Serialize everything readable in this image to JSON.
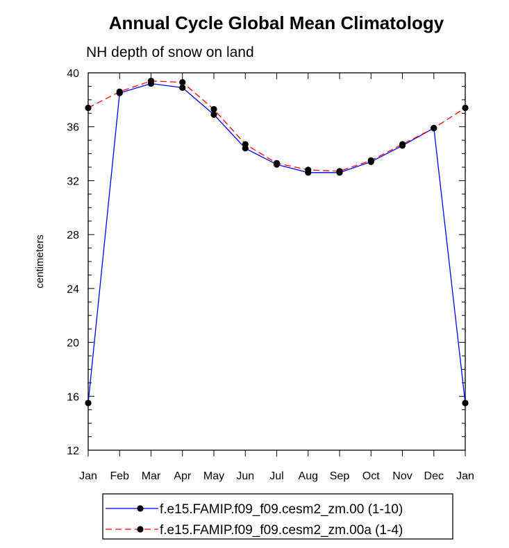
{
  "chart_data": {
    "type": "line",
    "title": "Annual Cycle Global Mean Climatology",
    "subtitle": "NH depth of snow on land",
    "xlabel": "",
    "ylabel": "centimeters",
    "categories": [
      "Jan",
      "Feb",
      "Mar",
      "Apr",
      "May",
      "Jun",
      "Jul",
      "Aug",
      "Sep",
      "Oct",
      "Nov",
      "Dec",
      "Jan"
    ],
    "ylim": [
      12,
      40
    ],
    "yticks": [
      "12",
      "16",
      "20",
      "24",
      "28",
      "32",
      "36",
      "40"
    ],
    "grid": false,
    "legend_position": "bottom",
    "series": [
      {
        "name": "f.e15.FAMIP.f09_f09.cesm2_zm.00 (1-10)",
        "color": "#0000ff",
        "dash": "solid",
        "marker": "filled-circle",
        "values": [
          15.5,
          38.5,
          39.2,
          38.9,
          36.9,
          34.4,
          33.2,
          32.6,
          32.6,
          33.4,
          34.6,
          35.9,
          15.5
        ]
      },
      {
        "name": "f.e15.FAMIP.f09_f09.cesm2_zm.00a (1-4)",
        "color": "#ff0000",
        "dash": "dashed",
        "marker": "filled-circle",
        "values": [
          37.4,
          38.6,
          39.4,
          39.3,
          37.3,
          34.7,
          33.3,
          32.8,
          32.7,
          33.5,
          34.7,
          35.9,
          37.4
        ]
      }
    ]
  }
}
